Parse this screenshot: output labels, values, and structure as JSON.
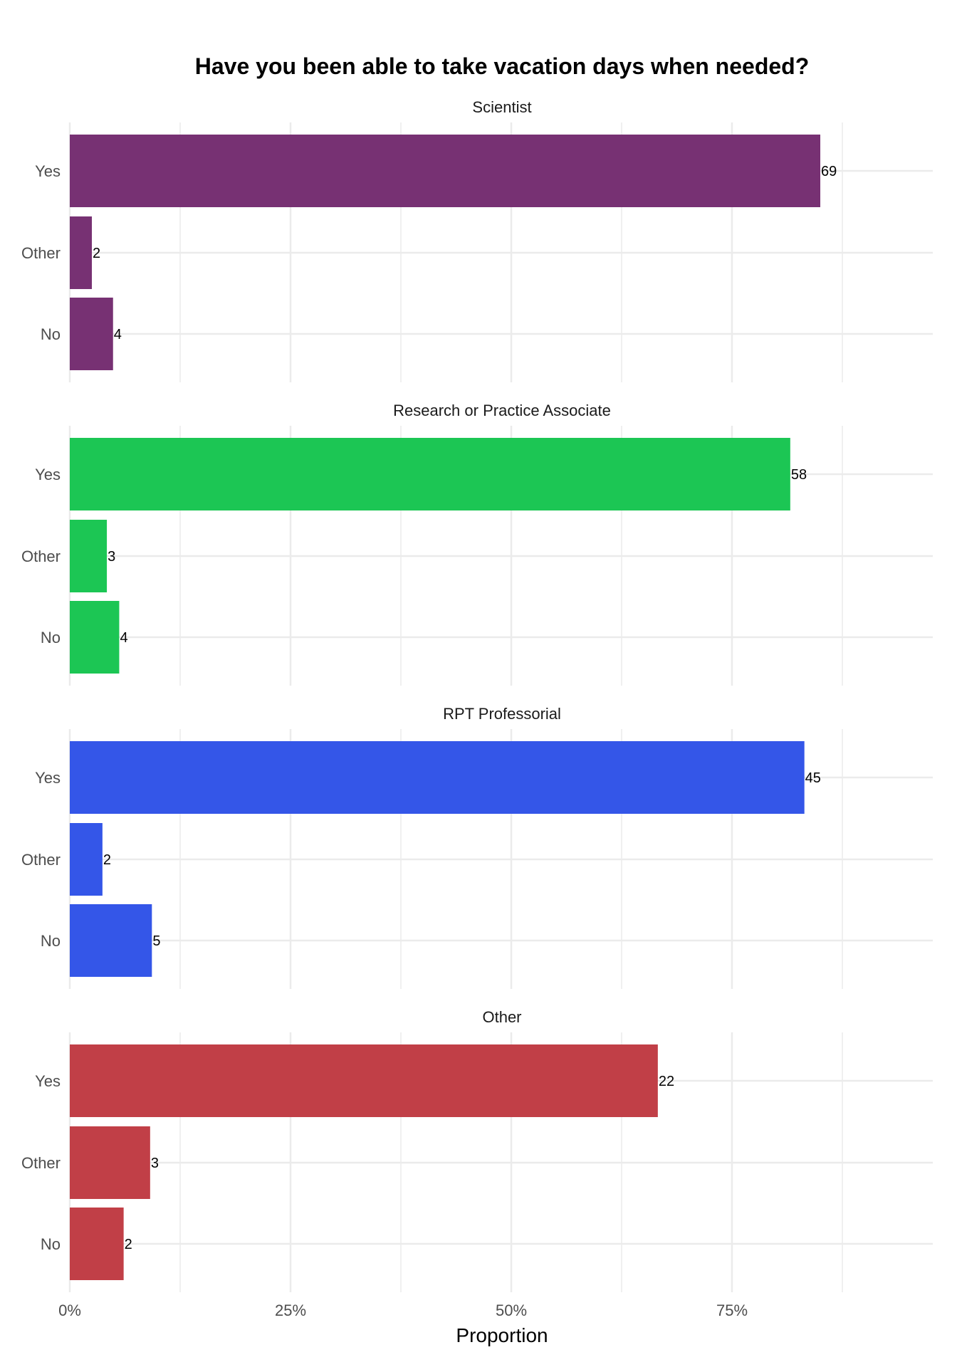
{
  "chart_data": {
    "type": "bar",
    "orientation": "horizontal",
    "title": "Have you been able to take vacation days when needed?",
    "xlabel": "Proportion",
    "ylabel": "",
    "xlim": [
      0,
      0.98
    ],
    "x_ticks": [
      0,
      0.25,
      0.5,
      0.75
    ],
    "x_tick_labels": [
      "0%",
      "25%",
      "50%",
      "75%"
    ],
    "grid": true,
    "categories": [
      "Yes",
      "Other",
      "No"
    ],
    "panels": [
      {
        "name": "Scientist",
        "color": "#773173",
        "bars": [
          {
            "category": "Yes",
            "proportion": 0.85,
            "count": "69"
          },
          {
            "category": "Other",
            "proportion": 0.025,
            "count": "2"
          },
          {
            "category": "No",
            "proportion": 0.049,
            "count": "4"
          }
        ]
      },
      {
        "name": "Research or Practice Associate",
        "color": "#1CC654",
        "bars": [
          {
            "category": "Yes",
            "proportion": 0.816,
            "count": "58"
          },
          {
            "category": "Other",
            "proportion": 0.042,
            "count": "3"
          },
          {
            "category": "No",
            "proportion": 0.056,
            "count": "4"
          }
        ]
      },
      {
        "name": "RPT Professorial",
        "color": "#3456E8",
        "bars": [
          {
            "category": "Yes",
            "proportion": 0.832,
            "count": "45"
          },
          {
            "category": "Other",
            "proportion": 0.037,
            "count": "2"
          },
          {
            "category": "No",
            "proportion": 0.093,
            "count": "5"
          }
        ]
      },
      {
        "name": "Other",
        "color": "#C13F47",
        "bars": [
          {
            "category": "Yes",
            "proportion": 0.666,
            "count": "22"
          },
          {
            "category": "Other",
            "proportion": 0.091,
            "count": "3"
          },
          {
            "category": "No",
            "proportion": 0.061,
            "count": "2"
          }
        ]
      }
    ]
  }
}
